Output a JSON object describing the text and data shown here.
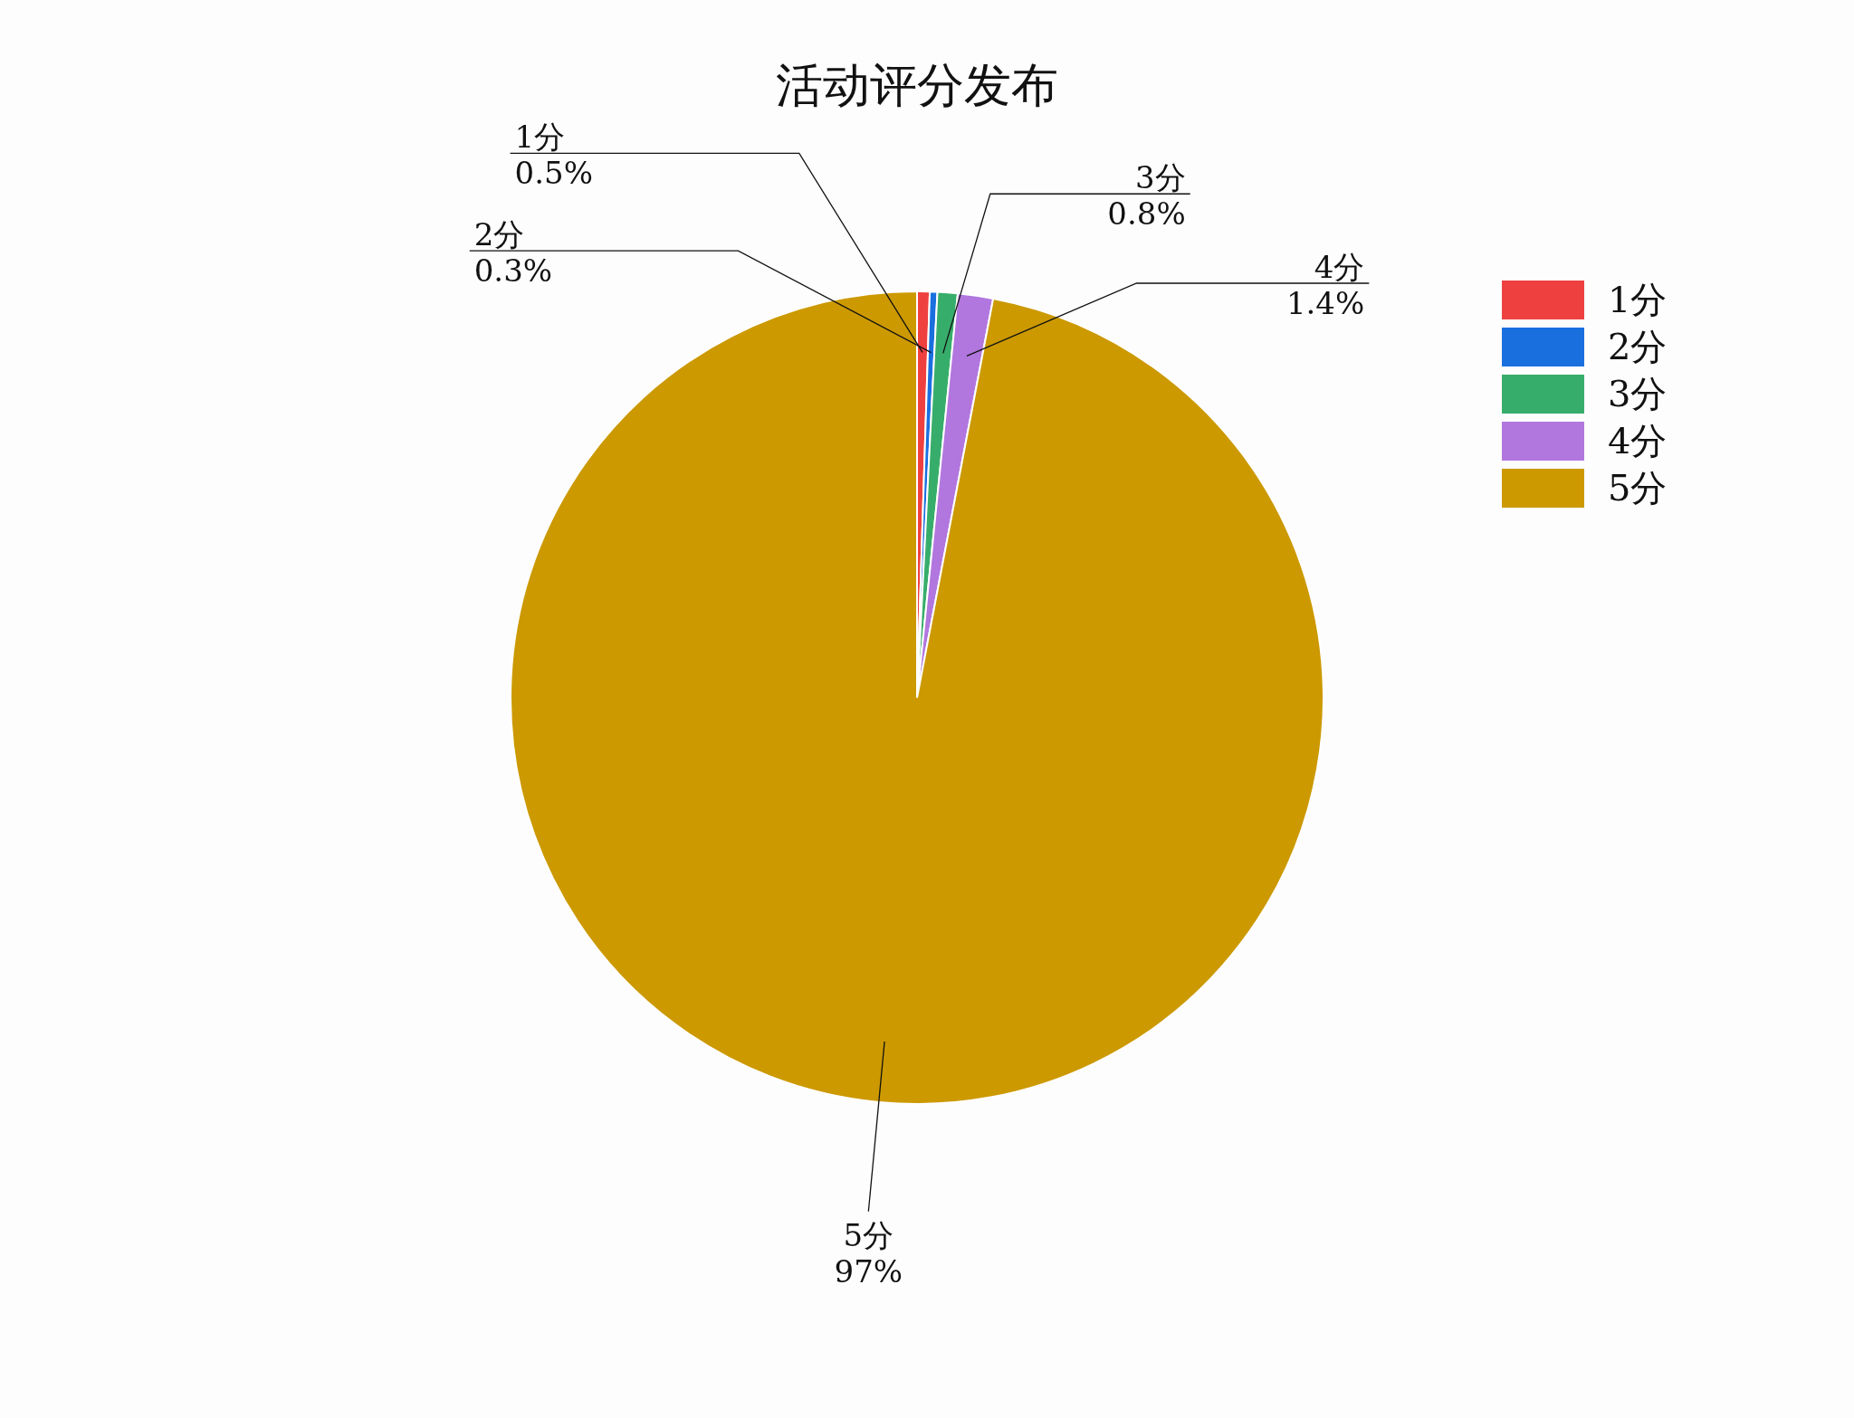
{
  "chart_data": {
    "type": "pie",
    "title": "活动评分发布",
    "categories": [
      "1分",
      "2分",
      "3分",
      "4分",
      "5分"
    ],
    "values": [
      0.5,
      0.3,
      0.8,
      1.4,
      97
    ],
    "value_labels": [
      "0.5%",
      "0.3%",
      "0.8%",
      "1.4%",
      "97%"
    ],
    "colors": [
      "#ef4040",
      "#1a6fdf",
      "#37ad6b",
      "#b177de",
      "#cc9900"
    ],
    "legend": "right"
  }
}
